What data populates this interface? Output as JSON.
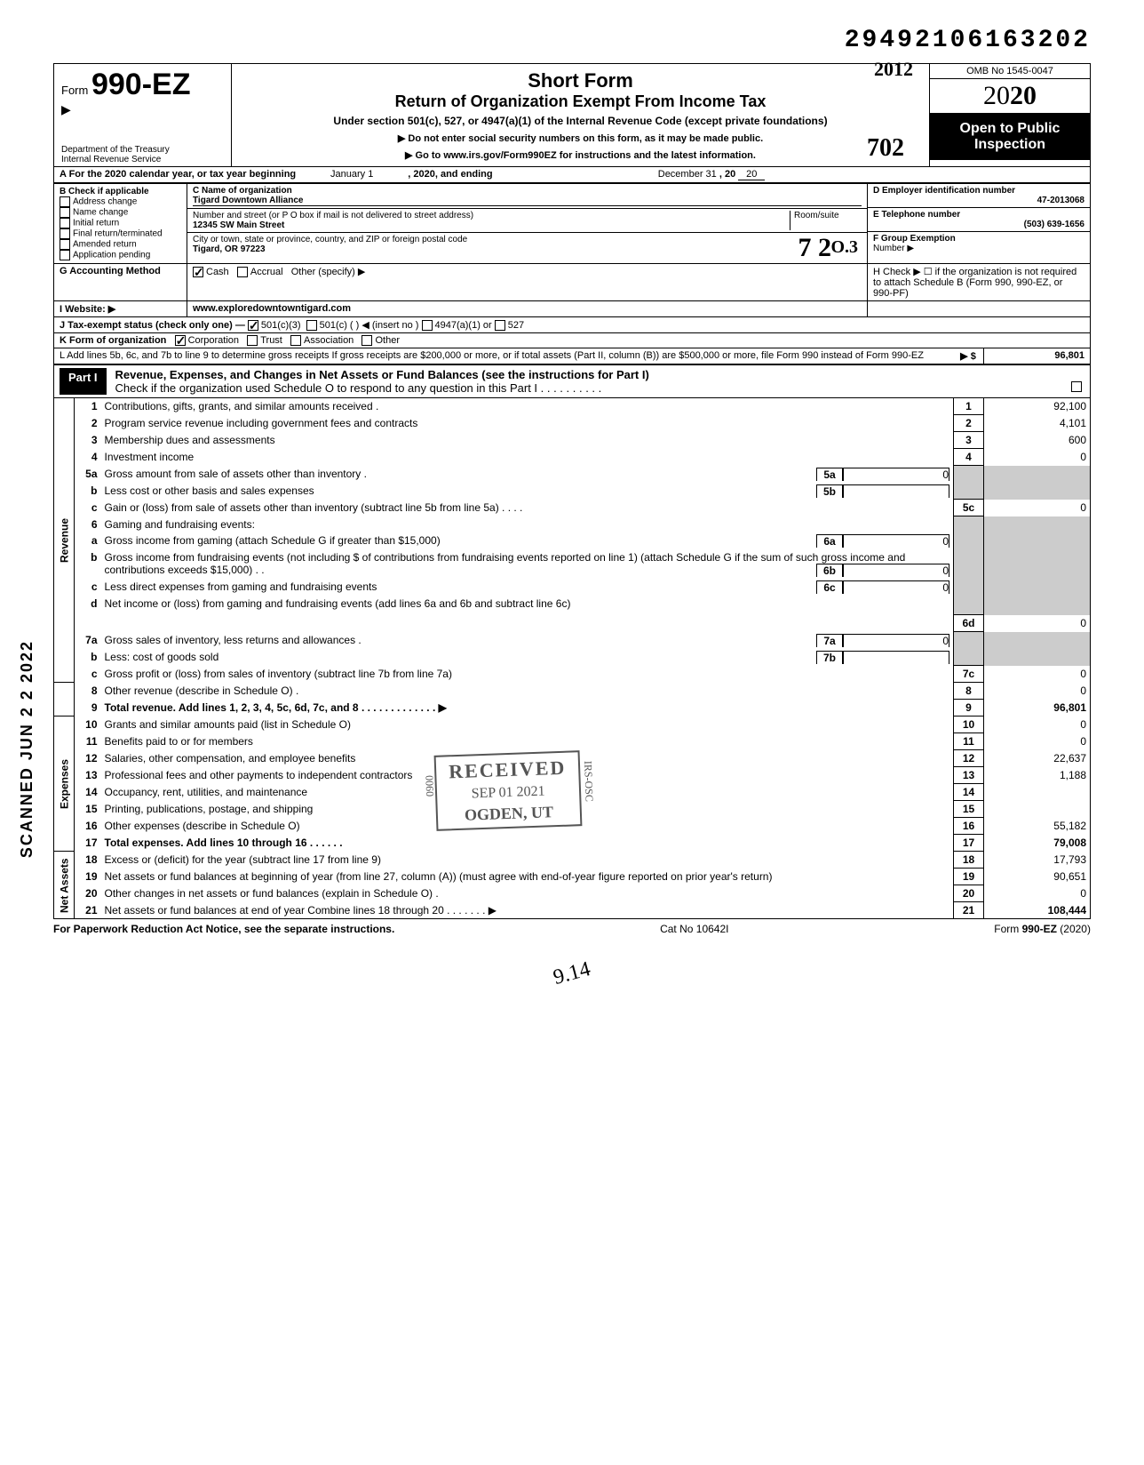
{
  "top_id": "29492106163202",
  "hand_year": "2012",
  "form": {
    "number": "990-EZ",
    "title": "Short Form",
    "subtitle": "Return of Organization Exempt From Income Tax",
    "under": "Under section 501(c), 527, or 4947(a)(1) of the Internal Revenue Code (except private foundations)",
    "note1": "▶ Do not enter social security numbers on this form, as it may be made public.",
    "note2": "▶ Go to www.irs.gov/Form990EZ for instructions and the latest information.",
    "dept1": "Department of the Treasury",
    "dept2": "Internal Revenue Service",
    "omb": "OMB No 1545-0047",
    "year": "2020",
    "open": "Open to Public Inspection"
  },
  "line_a": {
    "prefix": "A For the 2020 calendar year, or tax year beginning",
    "begin": "January 1",
    "mid": ", 2020, and ending",
    "end": "December 31",
    "suffix": ", 20",
    "yy": "20"
  },
  "section_b": {
    "label": "B Check if applicable",
    "items": [
      "Address change",
      "Name change",
      "Initial return",
      "Final return/terminated",
      "Amended return",
      "Application pending"
    ]
  },
  "section_c": {
    "label": "C Name of organization",
    "name": "Tigard Downtown Alliance",
    "addr_label": "Number and street (or P O  box if mail is not delivered to street address)",
    "room": "Room/suite",
    "addr": "12345 SW Main Street",
    "city_label": "City or town, state or province, country, and ZIP or foreign postal code",
    "city": "Tigard, OR  97223"
  },
  "section_d": {
    "label": "D Employer identification number",
    "ein": "47-2013068",
    "tel_label": "E Telephone number",
    "tel": "(503) 639-1656",
    "f_label": "F Group Exemption",
    "f_label2": "Number ▶"
  },
  "line_g": {
    "label": "G Accounting Method",
    "cash": "Cash",
    "accrual": "Accrual",
    "other": "Other (specify) ▶"
  },
  "line_h": {
    "text": "H Check ▶ ☐ if the organization is not required to attach Schedule B (Form 990, 990-EZ, or 990-PF)"
  },
  "line_i": {
    "label": "I  Website: ▶",
    "val": "www.exploredowntowntigard.com"
  },
  "line_j": {
    "label": "J Tax-exempt status (check only one) —",
    "c3": "501(c)(3)",
    "c": "501(c) (",
    "ins": ") ◀ (insert no )",
    "a1": "4947(a)(1) or",
    "527": "527"
  },
  "line_k": {
    "label": "K Form of organization",
    "corp": "Corporation",
    "trust": "Trust",
    "assoc": "Association",
    "other": "Other"
  },
  "line_l": "L Add lines 5b, 6c, and 7b to line 9 to determine gross receipts  If gross receipts are $200,000 or more, or if total assets (Part II, column (B)) are $500,000 or more, file Form 990 instead of Form 990-EZ",
  "line_l_arrow": "▶  $",
  "line_l_val": "96,801",
  "part1": {
    "label": "Part I",
    "title": "Revenue, Expenses, and Changes in Net Assets or Fund Balances (see the instructions for Part I)",
    "check": "Check if the organization used Schedule O to respond to any question in this Part I  .  .  .  .  .  .  .  .  .  ."
  },
  "vlabels": {
    "rev": "Revenue",
    "exp": "Expenses",
    "net": "Net Assets"
  },
  "lines": {
    "1": {
      "d": "Contributions, gifts, grants, and similar amounts received .",
      "v": "92,100"
    },
    "2": {
      "d": "Program service revenue including government fees and contracts",
      "v": "4,101"
    },
    "3": {
      "d": "Membership dues and assessments",
      "v": "600"
    },
    "4": {
      "d": "Investment income",
      "v": "0"
    },
    "5a": {
      "d": "Gross amount from sale of assets other than inventory  .",
      "sub": "0"
    },
    "5b": {
      "d": "Less  cost or other basis and sales expenses",
      "sub": ""
    },
    "5c": {
      "d": "Gain or (loss) from sale of assets other than inventory (subtract line 5b from line 5a)  .  .  .  .",
      "v": "0"
    },
    "6": {
      "d": "Gaming and fundraising events:"
    },
    "6a": {
      "d": "Gross income from gaming (attach Schedule G if greater than $15,000)",
      "sub": "0"
    },
    "6b": {
      "d": "Gross income from fundraising events (not including  $                       of contributions from fundraising events reported on line 1) (attach Schedule G if the sum of such gross income and contributions exceeds $15,000) .  .",
      "sub": "0"
    },
    "6c": {
      "d": "Less  direct expenses from gaming and fundraising events",
      "sub": "0"
    },
    "6d": {
      "d": "Net income or (loss) from gaming and fundraising events (add lines 6a and 6b and subtract line 6c)",
      "v": "0"
    },
    "7a": {
      "d": "Gross sales of inventory, less returns and allowances  .",
      "sub": "0"
    },
    "7b": {
      "d": "Less: cost of goods sold",
      "sub": ""
    },
    "7c": {
      "d": "Gross profit or (loss) from sales of inventory (subtract line 7b from line 7a)",
      "v": "0"
    },
    "8": {
      "d": "Other revenue (describe in Schedule O) .",
      "v": "0"
    },
    "9": {
      "d": "Total revenue. Add lines 1, 2, 3, 4, 5c, 6d, 7c, and 8  .  .  .  .  .  .  .  .  .  .  .  .  .  ▶",
      "v": "96,801"
    },
    "10": {
      "d": "Grants and similar amounts paid (list in Schedule O)",
      "v": "0"
    },
    "11": {
      "d": "Benefits paid to or for members",
      "v": "0"
    },
    "12": {
      "d": "Salaries, other compensation, and employee benefits",
      "v": "22,637"
    },
    "13": {
      "d": "Professional fees and other payments to independent contractors",
      "v": "1,188"
    },
    "14": {
      "d": "Occupancy, rent, utilities, and maintenance",
      "v": ""
    },
    "15": {
      "d": "Printing, publications, postage, and shipping",
      "v": ""
    },
    "16": {
      "d": "Other expenses (describe in Schedule O)",
      "v": "55,182"
    },
    "17": {
      "d": "Total expenses. Add lines 10 through 16  .  .  .  .  .  .",
      "v": "79,008"
    },
    "18": {
      "d": "Excess or (deficit) for the year (subtract line 17 from line 9)",
      "v": "17,793"
    },
    "19": {
      "d": "Net assets or fund balances at beginning of year (from line 27, column (A)) (must agree with end-of-year figure reported on prior year's return)",
      "v": "90,651"
    },
    "20": {
      "d": "Other changes in net assets or fund balances (explain in Schedule O) .",
      "v": "0"
    },
    "21": {
      "d": "Net assets or fund balances at end of year  Combine lines 18 through 20  .  .  .  .  .  .  .  ▶",
      "v": "108,444"
    }
  },
  "stamp": {
    "received": "RECEIVED",
    "date": "SEP 01 2021",
    "loc": "OGDEN, UT",
    "side": "IRS-OSC",
    "dln": "0060"
  },
  "footer": {
    "left": "For Paperwork Reduction Act Notice, see the separate instructions.",
    "mid": "Cat No  10642I",
    "right": "Form 990-EZ (2020)"
  },
  "scanned": "SCANNED  JUN 2 2 2022",
  "sig": "9.14",
  "hand_o3": "O.3",
  "hand_702": "702"
}
